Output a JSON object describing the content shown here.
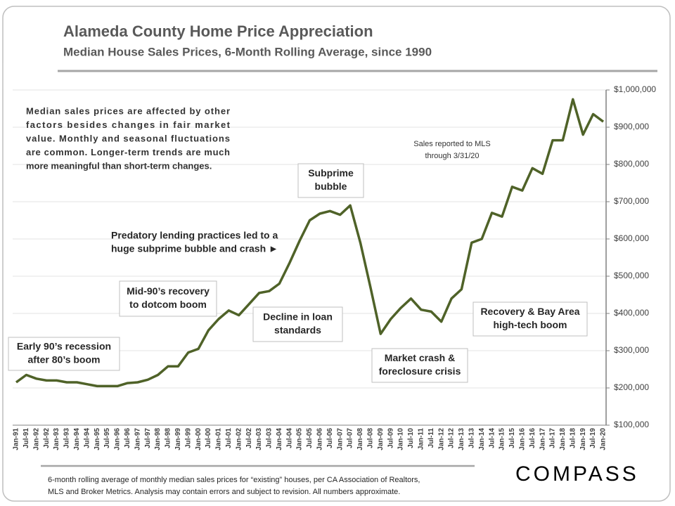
{
  "chart_data": {
    "type": "line",
    "title": "Alameda County Home Price Appreciation",
    "subtitle": "Median House Sales Prices, 6-Month Rolling Average, since 1990",
    "categories": [
      "Jan-91",
      "Jul-91",
      "Jan-92",
      "Jul-92",
      "Jan-93",
      "Jul-93",
      "Jan-94",
      "Jul-94",
      "Jan-95",
      "Jul-95",
      "Jan-96",
      "Jul-96",
      "Jan-97",
      "Jul-97",
      "Jan-98",
      "Jul-98",
      "Jan-99",
      "Jul-99",
      "Jan-00",
      "Jul-00",
      "Jan-01",
      "Jul-01",
      "Jan-02",
      "Jul-02",
      "Jan-03",
      "Jul-03",
      "Jan-04",
      "Jul-04",
      "Jan-05",
      "Jul-05",
      "Jan-06",
      "Jul-06",
      "Jan-07",
      "Jul-07",
      "Jan-08",
      "Jul-08",
      "Jan-09",
      "Jul-09",
      "Jan-10",
      "Jul-10",
      "Jan-11",
      "Jul-11",
      "Jan-12",
      "Jul-12",
      "Jan-13",
      "Jul-13",
      "Jan-14",
      "Jul-14",
      "Jan-15",
      "Jul-15",
      "Jan-16",
      "Jul-16",
      "Jan-17",
      "Jul-17",
      "Jan-18",
      "Jul-18",
      "Jan-19",
      "Jul-19",
      "Jan-20"
    ],
    "series": [
      {
        "name": "Median House Sales Price",
        "color": "#4f6228",
        "values": [
          215000,
          235000,
          225000,
          220000,
          220000,
          215000,
          215000,
          210000,
          205000,
          205000,
          205000,
          213000,
          215000,
          222000,
          235000,
          258000,
          258000,
          295000,
          305000,
          355000,
          385000,
          408000,
          395000,
          425000,
          455000,
          460000,
          480000,
          535000,
          595000,
          650000,
          668000,
          675000,
          665000,
          690000,
          590000,
          470000,
          345000,
          385000,
          415000,
          440000,
          410000,
          405000,
          378000,
          440000,
          465000,
          590000,
          600000,
          670000,
          660000,
          740000,
          730000,
          790000,
          775000,
          865000,
          865000,
          975000,
          880000,
          935000,
          915000
        ]
      }
    ],
    "ylim": [
      100000,
      1000000
    ],
    "yticks": [
      {
        "value": 100000,
        "label": "$100,000"
      },
      {
        "value": 200000,
        "label": "$200,000"
      },
      {
        "value": 300000,
        "label": "$300,000"
      },
      {
        "value": 400000,
        "label": "$400,000"
      },
      {
        "value": 500000,
        "label": "$500,000"
      },
      {
        "value": 600000,
        "label": "$600,000"
      },
      {
        "value": 700000,
        "label": "$700,000"
      },
      {
        "value": 800000,
        "label": "$800,000"
      },
      {
        "value": 900000,
        "label": "$900,000"
      },
      {
        "value": 1000000,
        "label": "$1,000,000"
      }
    ],
    "grid": true,
    "axis_position": "right",
    "note": [
      "Median sales prices are affected by other",
      "factors besides changes in fair market",
      "value. Monthly and seasonal fluctuations",
      "are common. Longer-term trends are much",
      "more meaningful than short-term changes."
    ],
    "sales_note": [
      "Sales reported to MLS",
      "through 3/31/20"
    ],
    "annotations": [
      [
        "Early 90’s recession",
        "after 80’s boom"
      ],
      [
        "Mid-90’s recovery",
        "to dotcom boom"
      ],
      [
        "Decline in loan",
        "standards"
      ],
      [
        "Subprime",
        "bubble"
      ],
      [
        "Market crash &",
        "foreclosure crisis"
      ],
      [
        "Recovery & Bay Area",
        "high-tech boom"
      ]
    ],
    "predatory_note": [
      "Predatory lending practices led to a",
      "huge subprime bubble and crash ►"
    ],
    "footnote": [
      "6-month rolling average of monthly median sales prices for “existing” houses, per CA Association of Realtors,",
      "MLS and Broker Metrics.  Analysis may contain errors and subject to revision. All numbers approximate."
    ],
    "logo": "COMPASS"
  }
}
